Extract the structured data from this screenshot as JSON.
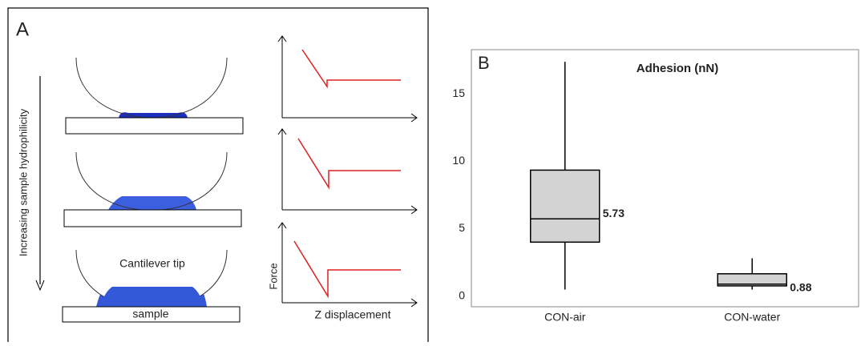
{
  "panel_a": {
    "label": "A",
    "arrow_label": "Increasing sample hydrophilicity",
    "tip_label": "Cantilever tip",
    "sample_label": "sample",
    "force_axis_label": "Force",
    "displacement_axis_label": "Z displacement"
  },
  "chart_data": {
    "type": "box",
    "panel_label": "B",
    "title": "Adhesion (nN)",
    "categories": [
      "CON-air",
      "CON-water"
    ],
    "min": [
      0.48,
      0.48
    ],
    "q1": [
      4.0,
      0.75
    ],
    "median": [
      5.73,
      0.88
    ],
    "q3": [
      9.35,
      1.65
    ],
    "max": [
      17.4,
      2.8
    ],
    "color": "#d3d3d3",
    "ylim": [
      -0.8,
      18.3
    ],
    "yticks": [
      0,
      5,
      10,
      15
    ],
    "grid": false
  }
}
